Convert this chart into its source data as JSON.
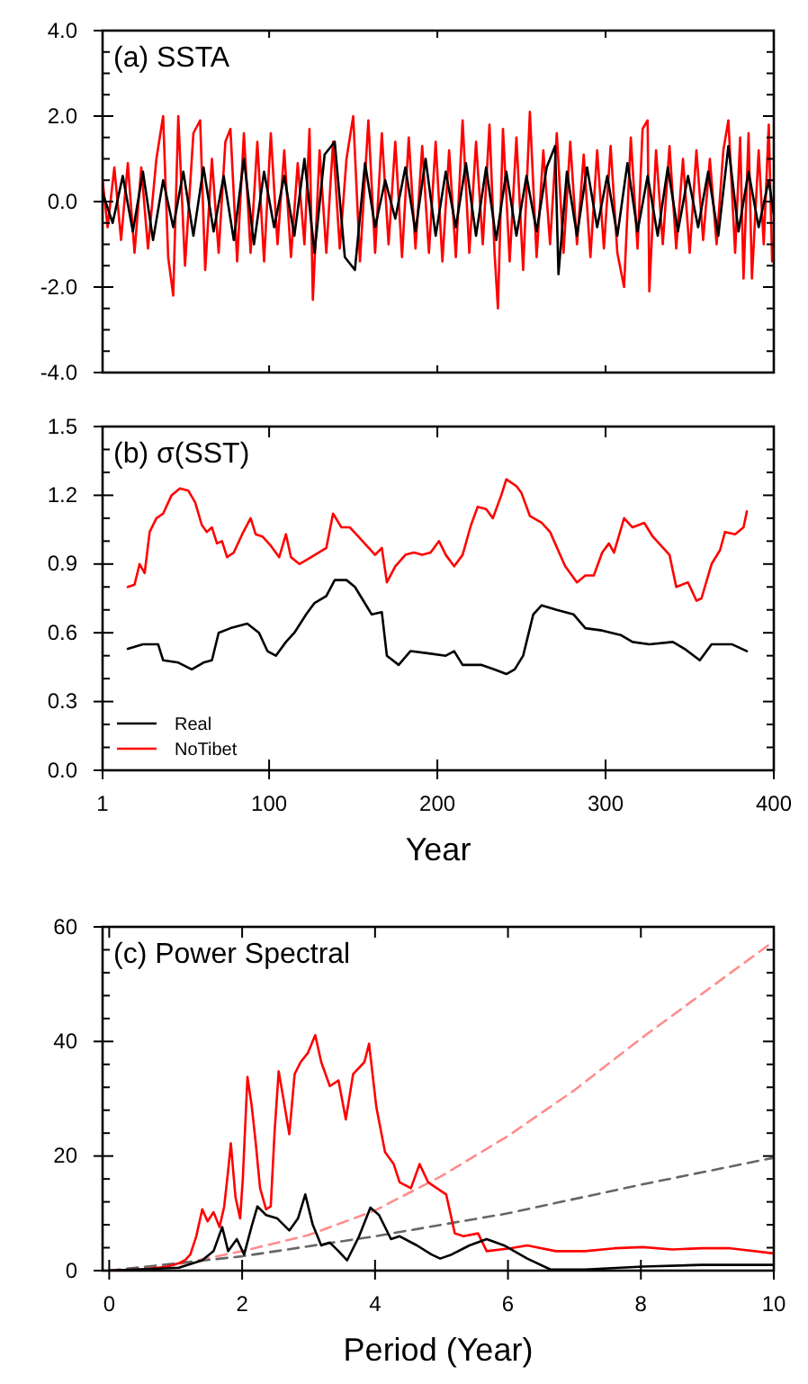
{
  "chart_data": [
    {
      "type": "line",
      "title": "(a) SSTA",
      "xlim": [
        1,
        400
      ],
      "xticks": [
        {
          "value": 1,
          "label": null
        },
        {
          "value": 100,
          "label": null
        },
        {
          "value": 200,
          "label": null
        },
        {
          "value": 300,
          "label": null
        },
        {
          "value": 400,
          "label": null
        }
      ],
      "ylim": [
        -4,
        4
      ],
      "yticks": [
        {
          "value": -4,
          "label": "-4.0"
        },
        {
          "value": -3.5,
          "label": null
        },
        {
          "value": -3,
          "label": null
        },
        {
          "value": -2.5,
          "label": null
        },
        {
          "value": -2,
          "label": "-2.0"
        },
        {
          "value": -1.5,
          "label": null
        },
        {
          "value": -1,
          "label": null
        },
        {
          "value": -0.5,
          "label": null
        },
        {
          "value": 0,
          "label": "0.0"
        },
        {
          "value": 0.5,
          "label": null
        },
        {
          "value": 1,
          "label": null
        },
        {
          "value": 1.5,
          "label": null
        },
        {
          "value": 2,
          "label": "2.0"
        },
        {
          "value": 2.5,
          "label": null
        },
        {
          "value": 3,
          "label": null
        },
        {
          "value": 3.5,
          "label": null
        },
        {
          "value": 4,
          "label": "4.0"
        }
      ],
      "tick_labels": "y",
      "grid": false,
      "legend": false,
      "series": [
        {
          "color": "#ff0000",
          "x": [
            1,
            4,
            8,
            12,
            16,
            20,
            24,
            28,
            33,
            37,
            40,
            43,
            46,
            50,
            55,
            59,
            62,
            66,
            70,
            74,
            77,
            81,
            85,
            89,
            93,
            97,
            101,
            105,
            109,
            113,
            117,
            121,
            124,
            126,
            130,
            134,
            138,
            142,
            146,
            150,
            154,
            159,
            163,
            167,
            171,
            175,
            179,
            183,
            187,
            191,
            195,
            199,
            203,
            207,
            211,
            215,
            219,
            223,
            227,
            231,
            234,
            236,
            239,
            243,
            247,
            251,
            255,
            259,
            263,
            267,
            271,
            275,
            279,
            283,
            287,
            291,
            295,
            299,
            303,
            307,
            311,
            315,
            319,
            322,
            325,
            326,
            330,
            334,
            338,
            342,
            346,
            350,
            354,
            358,
            362,
            366,
            370,
            373,
            377,
            380,
            382,
            385,
            387,
            391,
            394,
            397,
            399
          ],
          "values": [
            0.5,
            -0.6,
            0.8,
            -0.9,
            0.9,
            -1.2,
            0.8,
            -1.1,
            1.0,
            2.0,
            -1.3,
            -2.2,
            2.0,
            -1.5,
            1.6,
            1.9,
            -1.6,
            1.0,
            -1.2,
            1.4,
            1.7,
            -1.4,
            1.6,
            -1.2,
            1.4,
            -1.4,
            1.6,
            -1.0,
            1.2,
            -1.3,
            0.9,
            -1.0,
            1.7,
            -2.3,
            1.2,
            -1.2,
            1.4,
            -1.1,
            1.0,
            2.0,
            -1.4,
            1.9,
            -1.2,
            1.6,
            -1.0,
            1.4,
            -1.3,
            1.5,
            -1.1,
            1.3,
            -1.2,
            1.4,
            -1.4,
            1.2,
            -1.3,
            1.9,
            -1.2,
            1.4,
            -1.0,
            1.8,
            -1.2,
            -2.5,
            1.7,
            -1.4,
            1.5,
            -1.6,
            2.1,
            -1.3,
            1.2,
            -1.0,
            1.6,
            -1.2,
            1.4,
            -1.0,
            1.1,
            -1.3,
            1.2,
            -1.1,
            1.3,
            -1.2,
            -2.0,
            1.5,
            -1.1,
            1.7,
            1.9,
            -2.1,
            1.2,
            -1.0,
            1.3,
            -1.1,
            1.0,
            -1.2,
            1.2,
            -0.9,
            1.0,
            -1.0,
            1.2,
            1.9,
            -1.2,
            1.5,
            -1.8,
            1.6,
            -1.8,
            1.2,
            -1.0,
            1.8,
            -1.4
          ]
        },
        {
          "color": "#000000",
          "x": [
            1,
            7,
            13,
            19,
            25,
            31,
            37,
            43,
            49,
            55,
            61,
            67,
            73,
            79,
            85,
            91,
            97,
            103,
            109,
            115,
            121,
            127,
            133,
            139,
            145,
            151,
            157,
            163,
            169,
            175,
            181,
            187,
            193,
            199,
            205,
            211,
            217,
            223,
            229,
            235,
            241,
            247,
            253,
            259,
            265,
            270,
            272,
            277,
            283,
            289,
            295,
            301,
            307,
            313,
            319,
            325,
            331,
            337,
            343,
            349,
            355,
            361,
            367,
            373,
            379,
            385,
            391,
            397,
            400
          ],
          "values": [
            0.2,
            -0.5,
            0.6,
            -0.7,
            0.7,
            -0.9,
            0.5,
            -0.6,
            0.7,
            -0.8,
            0.8,
            -0.7,
            0.6,
            -0.9,
            1.0,
            -1.0,
            0.7,
            -0.6,
            0.6,
            -0.8,
            1.0,
            -1.2,
            1.1,
            1.4,
            -1.3,
            -1.6,
            0.9,
            -0.6,
            0.5,
            -0.4,
            0.8,
            -0.7,
            1.0,
            -0.8,
            0.7,
            -0.6,
            0.9,
            -0.8,
            0.8,
            -0.9,
            0.7,
            -0.8,
            0.6,
            -0.7,
            0.8,
            1.3,
            -1.7,
            0.7,
            -0.8,
            0.8,
            -0.6,
            0.6,
            -0.8,
            0.9,
            -0.7,
            0.6,
            -0.8,
            0.8,
            -0.7,
            0.6,
            -0.6,
            0.7,
            -0.8,
            1.3,
            -0.7,
            0.7,
            -0.6,
            0.5,
            -0.3
          ]
        }
      ]
    },
    {
      "type": "line",
      "title": "(b) σ(SST)",
      "xlabel": "Year",
      "xlim": [
        1,
        400
      ],
      "xticks": [
        1,
        100,
        200,
        300,
        400
      ],
      "ylim": [
        0,
        1.5
      ],
      "yticks": [
        {
          "value": 0,
          "label": "0.0"
        },
        {
          "value": 0.1,
          "label": null
        },
        {
          "value": 0.2,
          "label": null
        },
        {
          "value": 0.3,
          "label": "0.3"
        },
        {
          "value": 0.4,
          "label": null
        },
        {
          "value": 0.5,
          "label": null
        },
        {
          "value": 0.6,
          "label": "0.6"
        },
        {
          "value": 0.7,
          "label": null
        },
        {
          "value": 0.8,
          "label": null
        },
        {
          "value": 0.9,
          "label": "0.9"
        },
        {
          "value": 1.0,
          "label": null
        },
        {
          "value": 1.1,
          "label": null
        },
        {
          "value": 1.2,
          "label": "1.2"
        },
        {
          "value": 1.3,
          "label": null
        },
        {
          "value": 1.4,
          "label": null
        },
        {
          "value": 1.5,
          "label": "1.5"
        }
      ],
      "grid": false,
      "legend": "bottom left",
      "series": [
        {
          "name": "Real",
          "color": "#000000",
          "x": [
            16,
            25,
            34,
            37,
            46,
            54,
            61,
            66,
            70,
            77,
            87,
            94,
            99,
            104,
            110,
            115,
            122,
            127,
            134,
            139,
            146,
            151,
            156,
            161,
            167,
            170,
            177,
            184,
            195,
            205,
            210,
            215,
            226,
            234,
            241,
            246,
            251,
            257,
            262,
            271,
            281,
            288,
            298,
            309,
            316,
            326,
            340,
            347,
            356,
            363,
            375,
            384
          ],
          "values": [
            0.53,
            0.55,
            0.55,
            0.48,
            0.47,
            0.44,
            0.47,
            0.48,
            0.6,
            0.62,
            0.64,
            0.6,
            0.52,
            0.5,
            0.56,
            0.6,
            0.68,
            0.73,
            0.76,
            0.83,
            0.83,
            0.8,
            0.74,
            0.68,
            0.69,
            0.5,
            0.46,
            0.52,
            0.51,
            0.5,
            0.52,
            0.46,
            0.46,
            0.44,
            0.42,
            0.44,
            0.5,
            0.68,
            0.72,
            0.7,
            0.68,
            0.62,
            0.61,
            0.59,
            0.56,
            0.55,
            0.56,
            0.53,
            0.48,
            0.55,
            0.55,
            0.52
          ]
        },
        {
          "name": "NoTibet",
          "color": "#ff0000",
          "x": [
            16,
            20,
            23,
            26,
            29,
            33,
            37,
            42,
            47,
            52,
            56,
            60,
            63,
            66,
            69,
            72,
            75,
            79,
            84,
            89,
            92,
            96,
            101,
            106,
            110,
            113,
            118,
            125,
            134,
            138,
            143,
            148,
            153,
            158,
            163,
            167,
            170,
            175,
            181,
            186,
            191,
            196,
            201,
            205,
            210,
            215,
            220,
            224,
            229,
            233,
            238,
            241,
            247,
            250,
            255,
            262,
            267,
            273,
            276,
            283,
            288,
            293,
            298,
            302,
            305,
            311,
            316,
            323,
            328,
            333,
            338,
            342,
            349,
            354,
            357,
            363,
            368,
            371,
            377,
            382,
            384
          ],
          "values": [
            0.8,
            0.81,
            0.9,
            0.86,
            1.04,
            1.1,
            1.12,
            1.2,
            1.23,
            1.22,
            1.17,
            1.07,
            1.04,
            1.06,
            0.99,
            1.0,
            0.93,
            0.95,
            1.03,
            1.1,
            1.03,
            1.02,
            0.98,
            0.93,
            1.03,
            0.93,
            0.9,
            0.93,
            0.97,
            1.12,
            1.06,
            1.06,
            1.02,
            0.98,
            0.94,
            0.97,
            0.82,
            0.89,
            0.94,
            0.95,
            0.94,
            0.95,
            1.0,
            0.94,
            0.89,
            0.94,
            1.07,
            1.15,
            1.14,
            1.1,
            1.2,
            1.27,
            1.24,
            1.21,
            1.11,
            1.08,
            1.04,
            0.94,
            0.89,
            0.82,
            0.85,
            0.85,
            0.95,
            0.99,
            0.95,
            1.1,
            1.06,
            1.08,
            1.02,
            0.98,
            0.94,
            0.8,
            0.82,
            0.74,
            0.75,
            0.9,
            0.96,
            1.04,
            1.03,
            1.06,
            1.13
          ]
        }
      ]
    },
    {
      "type": "line",
      "title": "(c) Power Spectral",
      "xlabel": "Period (Year)",
      "xlim": [
        -0.1,
        10
      ],
      "xticks": [
        0,
        2,
        4,
        6,
        8,
        10
      ],
      "ylim": [
        0,
        60
      ],
      "yticks": [
        0,
        {
          "value": 4,
          "label": null
        },
        {
          "value": 8,
          "label": null
        },
        {
          "value": 12,
          "label": null
        },
        {
          "value": 16,
          "label": null
        },
        20,
        {
          "value": 24,
          "label": null
        },
        {
          "value": 28,
          "label": null
        },
        {
          "value": 32,
          "label": null
        },
        {
          "value": 36,
          "label": null
        },
        40,
        {
          "value": 44,
          "label": null
        },
        {
          "value": 48,
          "label": null
        },
        {
          "value": 52,
          "label": null
        },
        {
          "value": 56,
          "label": null
        },
        60
      ],
      "grid": false,
      "legend": false,
      "series": [
        {
          "color": "#ff8c8c",
          "line_style": "dashed",
          "x": [
            0,
            1,
            2,
            3,
            4,
            5,
            6,
            7,
            8,
            9,
            10
          ],
          "values": [
            0,
            1,
            3.4,
            6.2,
            10.5,
            16.5,
            23.5,
            31.5,
            40.5,
            49,
            57.5
          ]
        },
        {
          "color": "#666666",
          "line_style": "dashed",
          "x": [
            0,
            2,
            4,
            6,
            8,
            10
          ],
          "values": [
            0,
            2.5,
            6,
            10,
            15,
            19.7
          ]
        },
        {
          "color": "#ff0000",
          "x": [
            0,
            0.52,
            0.87,
            1.05,
            1.14,
            1.22,
            1.31,
            1.4,
            1.48,
            1.57,
            1.66,
            1.73,
            1.79,
            1.83,
            1.9,
            1.97,
            2.01,
            2.08,
            2.14,
            2.2,
            2.27,
            2.36,
            2.43,
            2.49,
            2.55,
            2.62,
            2.71,
            2.79,
            2.88,
            2.99,
            3.1,
            3.19,
            3.32,
            3.45,
            3.56,
            3.67,
            3.84,
            3.91,
            4.02,
            4.15,
            4.28,
            4.37,
            4.54,
            4.67,
            4.8,
            4.93,
            5.07,
            5.2,
            5.33,
            5.55,
            5.68,
            6.03,
            6.29,
            6.72,
            7.16,
            7.6,
            8.03,
            8.47,
            8.91,
            9.35,
            10
          ],
          "values": [
            0,
            0.2,
            0.7,
            1.3,
            1.8,
            2.8,
            6,
            10.7,
            8.6,
            10.2,
            7.6,
            11.2,
            17.5,
            22.2,
            12.8,
            9.1,
            16,
            33.8,
            29.1,
            22.8,
            14.4,
            10.7,
            11.2,
            24.5,
            34.8,
            30.1,
            23.8,
            34.3,
            36.4,
            38,
            41.1,
            36.4,
            32.2,
            33.2,
            26.4,
            34.3,
            36.4,
            39.6,
            28.5,
            20.7,
            18.6,
            15.4,
            14.4,
            18.6,
            15.4,
            14.4,
            13.3,
            6.5,
            6,
            6.5,
            3.4,
            3.9,
            4.4,
            3.4,
            3.4,
            3.9,
            4.1,
            3.7,
            3.9,
            3.9,
            3.0
          ]
        },
        {
          "color": "#000000",
          "x": [
            0,
            1.05,
            1.4,
            1.57,
            1.7,
            1.79,
            1.92,
            2.03,
            2.14,
            2.23,
            2.36,
            2.53,
            2.71,
            2.84,
            2.95,
            3.06,
            3.19,
            3.32,
            3.45,
            3.58,
            3.76,
            3.93,
            4.06,
            4.24,
            4.37,
            4.63,
            4.85,
            4.98,
            5.15,
            5.42,
            5.68,
            5.94,
            6.29,
            6.64,
            7.16,
            8.03,
            8.91,
            10
          ],
          "values": [
            0,
            0.5,
            1.8,
            3.4,
            7.6,
            3.4,
            5.5,
            2.8,
            7.6,
            11.2,
            9.7,
            9.1,
            7,
            9.1,
            13.3,
            8.1,
            4.4,
            4.9,
            3.4,
            1.8,
            6,
            11,
            9.7,
            5.5,
            6,
            4.4,
            2.8,
            2.1,
            2.8,
            4.4,
            5.5,
            4.4,
            2.1,
            0.2,
            0.2,
            0.7,
            1.0,
            1.0
          ]
        }
      ]
    }
  ]
}
